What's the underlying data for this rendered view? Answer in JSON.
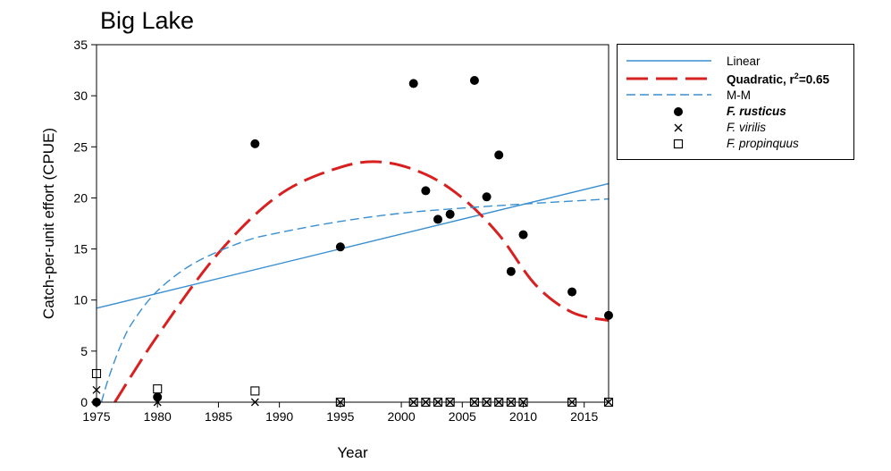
{
  "chart_data": {
    "type": "scatter",
    "title": "Big Lake",
    "xlabel": "Year",
    "ylabel": "Catch-per-unit effort (CPUE)",
    "xlim": [
      1975,
      2017
    ],
    "ylim": [
      0,
      35
    ],
    "xticks": [
      1975,
      1980,
      1985,
      1990,
      1995,
      2000,
      2005,
      2010,
      2015
    ],
    "yticks": [
      0,
      5,
      10,
      15,
      20,
      25,
      30,
      35
    ],
    "grid": false,
    "legend_position": "outside-right",
    "series": [
      {
        "name": "F. rusticus",
        "marker": "filled-circle",
        "color": "#000000",
        "x": [
          1975,
          1980,
          1988,
          1995,
          2001,
          2002,
          2003,
          2004,
          2006,
          2007,
          2008,
          2009,
          2010,
          2014,
          2017
        ],
        "y": [
          0,
          0.5,
          25.3,
          15.2,
          31.2,
          20.7,
          17.9,
          18.4,
          31.5,
          20.1,
          24.2,
          12.8,
          16.4,
          10.8,
          8.5
        ]
      },
      {
        "name": "F. virilis",
        "marker": "x",
        "color": "#000000",
        "x": [
          1975,
          1980,
          1988,
          1995,
          2001,
          2002,
          2003,
          2004,
          2006,
          2007,
          2008,
          2009,
          2010,
          2014,
          2017
        ],
        "y": [
          1.2,
          0,
          0,
          0,
          0,
          0,
          0,
          0,
          0,
          0,
          0,
          0,
          0,
          0,
          0
        ]
      },
      {
        "name": "F. propinquus",
        "marker": "open-square",
        "color": "#000000",
        "x": [
          1975,
          1980,
          1988,
          1995,
          2001,
          2002,
          2003,
          2004,
          2006,
          2007,
          2008,
          2009,
          2010,
          2014,
          2017
        ],
        "y": [
          2.8,
          1.3,
          1.1,
          0,
          0,
          0,
          0,
          0,
          0,
          0,
          0,
          0,
          0,
          0,
          0
        ]
      }
    ],
    "fits": [
      {
        "name": "Linear",
        "style": "solid",
        "color": "#3a8fd0",
        "x": [
          1975,
          2017
        ],
        "y": [
          9.2,
          21.4
        ]
      },
      {
        "name": "Quadratic",
        "label_suffix": ", r",
        "sup": "2",
        "label_tail": "=0.65",
        "style": "long-dash",
        "color": "#d92020",
        "x": [
          1976.5,
          1980,
          1985,
          1990,
          1995,
          1998.5,
          2002,
          2005,
          2008,
          2011,
          2014,
          2017
        ],
        "y": [
          0,
          6.5,
          14.6,
          20.3,
          23.0,
          23.5,
          22.3,
          20.0,
          16.4,
          11.5,
          8.8,
          8.0
        ]
      },
      {
        "name": "M-M",
        "style": "short-dash",
        "color": "#3a8fd0",
        "x": [
          1975.4,
          1976,
          1977,
          1978,
          1980,
          1983,
          1987,
          1990,
          1995,
          2000,
          2005,
          2010,
          2017
        ],
        "y": [
          0,
          2.4,
          5.6,
          7.9,
          10.9,
          13.6,
          15.7,
          16.6,
          17.7,
          18.5,
          19.0,
          19.4,
          19.9
        ]
      }
    ]
  }
}
